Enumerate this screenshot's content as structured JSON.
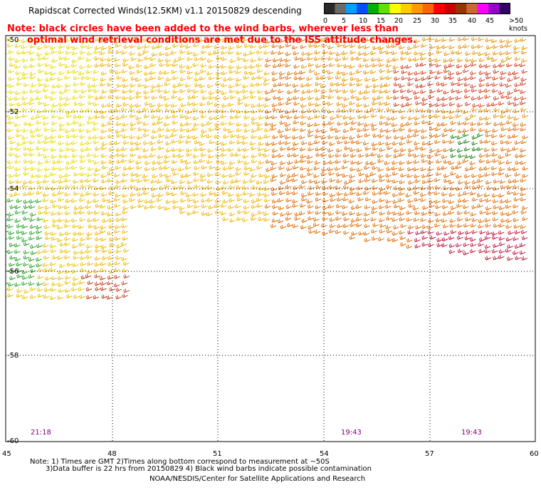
{
  "title": "Rapidscat Corrected Winds(12.5KM) v1.1 20150829 descending",
  "note": {
    "line1": "Note: black circles have been added to the wind barbs, wherever less than",
    "line2": "optimal wind retrieval conditions are met due to the ISS attitude changes."
  },
  "legend": {
    "unit_label": ">50 knots",
    "labels": [
      "0",
      "5",
      "10",
      "15",
      "20",
      "25",
      "30",
      "35",
      "40",
      "45"
    ],
    "colors": [
      "#2a2a2a",
      "#6a6a6a",
      "#00a0ff",
      "#0050ff",
      "#00b000",
      "#60e000",
      "#ffff00",
      "#ffcc00",
      "#ff9900",
      "#ff6600",
      "#ff0000",
      "#cc0000",
      "#993300",
      "#cc6633",
      "#ff00ff",
      "#9900cc",
      "#330066"
    ]
  },
  "lat_ticks": [
    "-50",
    "-52",
    "-54",
    "-56",
    "-58",
    "-60"
  ],
  "lon_ticks": [
    "45",
    "48",
    "51",
    "54",
    "57",
    "60"
  ],
  "times": [
    "21:18",
    "19:43",
    "19:43"
  ],
  "footer": {
    "line1": "Note: 1) Times are GMT 2)Times along bottom correspond to measurement at ~50S",
    "line2": "3)Data buffer is 22 hrs from 20150829 4) Black wind barbs indicate possible contamination",
    "line3": "NOAA/NESDIS/Center for Satellite Applications and Research"
  }
}
